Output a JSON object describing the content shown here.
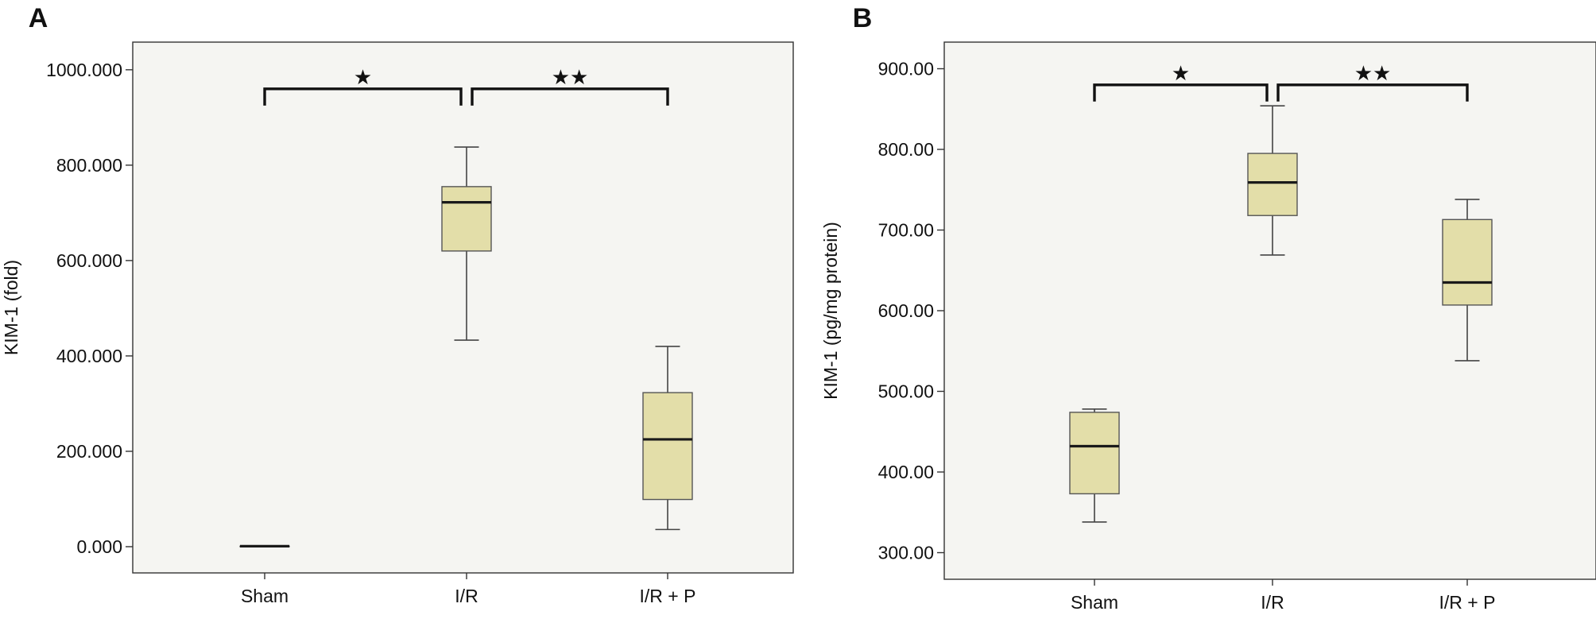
{
  "chart_data": [
    {
      "panel_label": "A",
      "type": "box",
      "ylabel": "KIM-1 (fold)",
      "xlabel": "",
      "ylim": [
        -55,
        1058
      ],
      "yticks": [
        0,
        200,
        400,
        600,
        800,
        1000
      ],
      "ytick_labels": [
        "0.000",
        "200.000",
        "400.000",
        "600.000",
        "800.000",
        "1000.000"
      ],
      "categories": [
        "Sham",
        "I/R",
        "I/R + P"
      ],
      "boxes": [
        {
          "category": "Sham",
          "min": 1,
          "q1": 1,
          "median": 1,
          "q3": 1,
          "max": 1
        },
        {
          "category": "I/R",
          "min": 433,
          "q1": 620,
          "median": 722,
          "q3": 755,
          "max": 838
        },
        {
          "category": "I/R + P",
          "min": 36,
          "q1": 99,
          "median": 225,
          "q3": 323,
          "max": 420
        }
      ],
      "significance": [
        {
          "from": "Sham",
          "to": "I/R",
          "y": 960,
          "marker": "★"
        },
        {
          "from": "I/R",
          "to": "I/R + P",
          "y": 960,
          "marker": "★★"
        }
      ],
      "box_color": "#e3dea9",
      "plot_background": "#f5f5f2"
    },
    {
      "panel_label": "B",
      "type": "box",
      "ylabel": "KIM-1 (pg/mg protein)",
      "xlabel": "",
      "ylim": [
        267,
        933
      ],
      "yticks": [
        300,
        400,
        500,
        600,
        700,
        800,
        900
      ],
      "ytick_labels": [
        "300.00",
        "400.00",
        "500.00",
        "600.00",
        "700.00",
        "800.00",
        "900.00"
      ],
      "categories": [
        "Sham",
        "I/R",
        "I/R + P"
      ],
      "boxes": [
        {
          "category": "Sham",
          "min": 338,
          "q1": 373,
          "median": 432,
          "q3": 474,
          "max": 478
        },
        {
          "category": "I/R",
          "min": 669,
          "q1": 718,
          "median": 759,
          "q3": 795,
          "max": 854
        },
        {
          "category": "I/R + P",
          "min": 538,
          "q1": 607,
          "median": 635,
          "q3": 713,
          "max": 738
        }
      ],
      "significance": [
        {
          "from": "Sham",
          "to": "I/R",
          "y": 880,
          "marker": "★"
        },
        {
          "from": "I/R",
          "to": "I/R + P",
          "y": 880,
          "marker": "★★"
        }
      ],
      "box_color": "#e3dea9",
      "plot_background": "#f5f5f2"
    }
  ]
}
